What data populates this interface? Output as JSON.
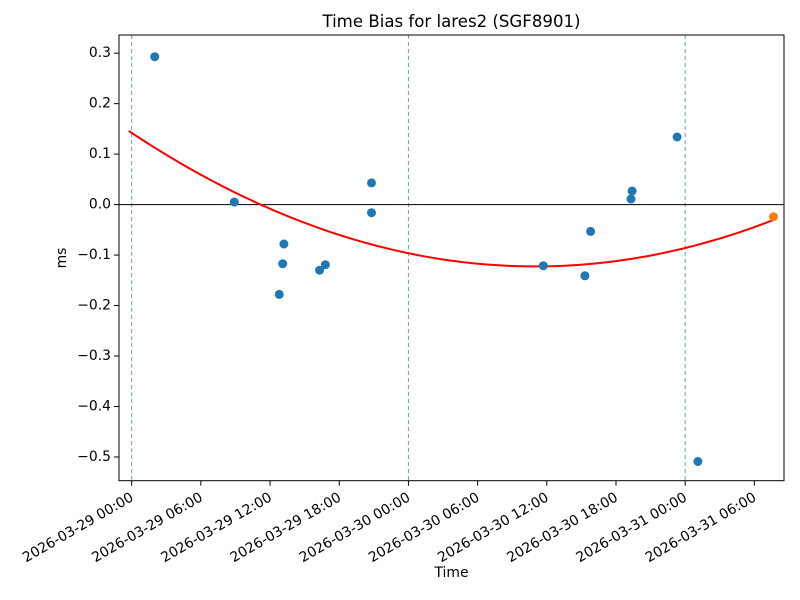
{
  "chart_data": {
    "type": "scatter",
    "title": "Time Bias for lares2 (SGF8901)",
    "xlabel": "Time",
    "ylabel": "ms",
    "x_axis": {
      "epoch": "2026-03-29 00:00",
      "tick_hours": [
        0,
        6,
        12,
        18,
        24,
        30,
        36,
        42,
        48,
        54
      ],
      "tick_labels": [
        "2026-03-29 00:00",
        "2026-03-29 06:00",
        "2026-03-29 12:00",
        "2026-03-29 18:00",
        "2026-03-30 00:00",
        "2026-03-30 06:00",
        "2026-03-30 12:00",
        "2026-03-30 18:00",
        "2026-03-31 00:00",
        "2026-03-31 06:00"
      ],
      "lim_hours": [
        -1.1,
        56.57
      ]
    },
    "y_axis": {
      "ticks": [
        0.3,
        0.2,
        0.1,
        0.0,
        -0.1,
        -0.2,
        -0.3,
        -0.4,
        -0.5
      ],
      "lim": [
        -0.547,
        0.336
      ]
    },
    "grid": false,
    "legend": "none",
    "zero_line": {
      "value": 0.0,
      "color": "#000000"
    },
    "day_boundary_vlines": {
      "hours": [
        0,
        24,
        48
      ],
      "color": "#5f9ecb",
      "style": "dashed"
    },
    "series": [
      {
        "name": "observed-bias",
        "color": "#1f77b4",
        "marker": "circle",
        "points_hours_ms": [
          [
            2.0,
            0.293
          ],
          [
            8.9,
            0.005
          ],
          [
            12.8,
            -0.178
          ],
          [
            13.1,
            -0.117
          ],
          [
            13.2,
            -0.078
          ],
          [
            16.3,
            -0.13
          ],
          [
            16.8,
            -0.119
          ],
          [
            20.8,
            0.043
          ],
          [
            20.8,
            -0.016
          ],
          [
            35.7,
            -0.121
          ],
          [
            39.3,
            -0.141
          ],
          [
            39.8,
            -0.053
          ],
          [
            43.3,
            0.011
          ],
          [
            43.4,
            0.027
          ],
          [
            47.3,
            0.134
          ],
          [
            49.1,
            -0.509
          ]
        ]
      },
      {
        "name": "predicted-bias",
        "color": "#ff7f0e",
        "marker": "circle",
        "points_hours_ms": [
          [
            55.66,
            -0.024
          ]
        ]
      }
    ],
    "fit_curve": {
      "name": "polynomial-fit",
      "color": "#ff0000",
      "a_per_hour2": 0.000216,
      "vertex_hour": 35.0,
      "vertex_ms": -0.1225,
      "start_hour": -0.2,
      "end_hour": 55.66
    }
  }
}
